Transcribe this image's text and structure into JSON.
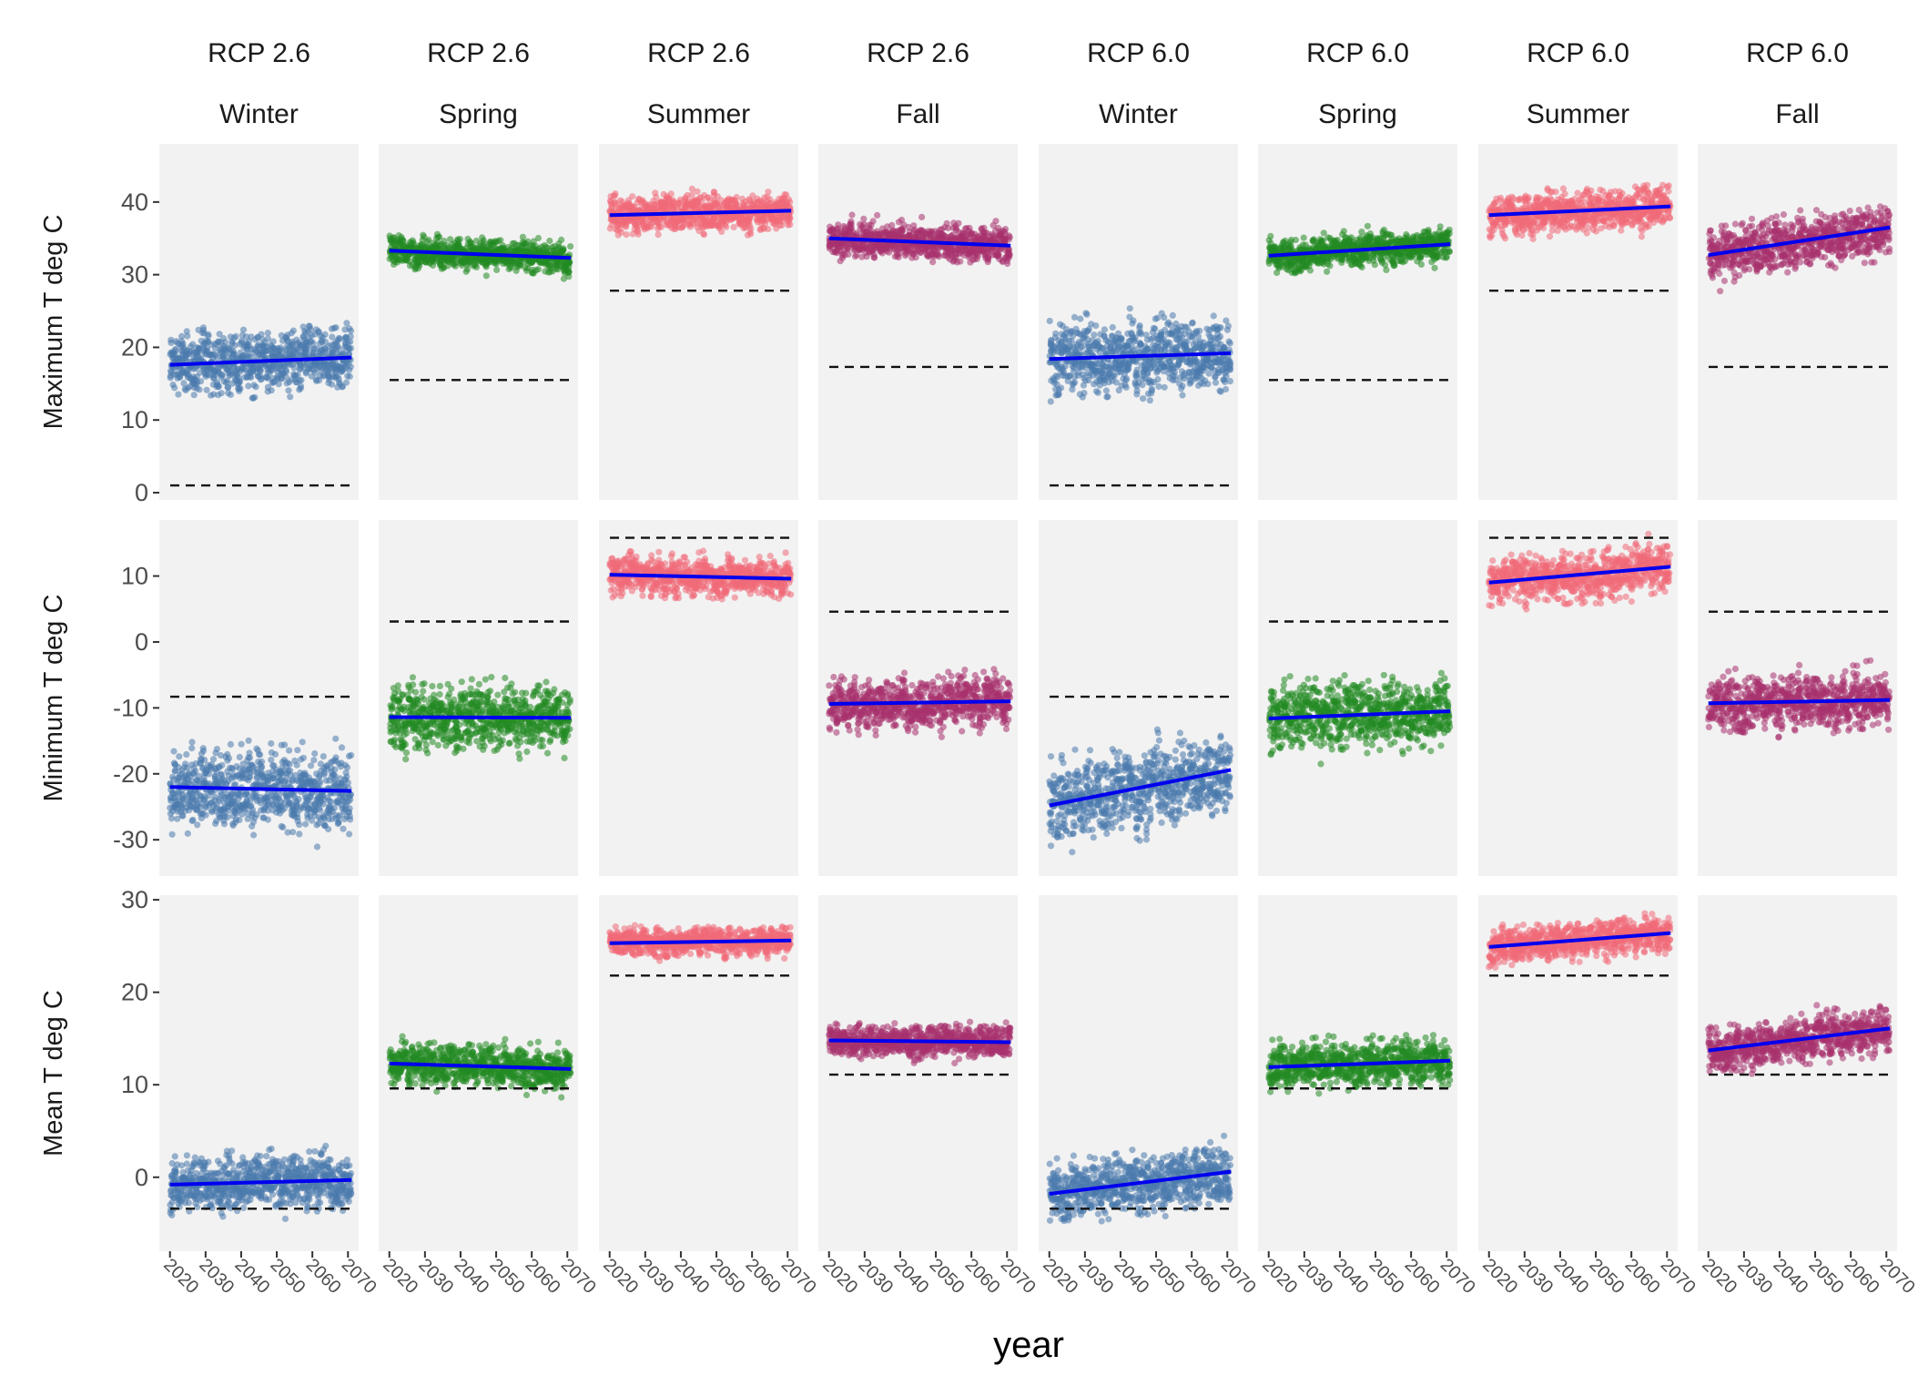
{
  "chart_data": {
    "type": "scatter",
    "xlabel": "year",
    "x_ticks": [
      2020,
      2030,
      2040,
      2050,
      2060,
      2070
    ],
    "x_range": [
      2017,
      2073
    ],
    "point_alpha": 0.55,
    "trend_color": "#0000ee",
    "reference_line_style": "dashed",
    "panel_background": "#f2f2f2",
    "season_colors": {
      "Winter": "#4a7aad",
      "Spring": "#228b22",
      "Summer": "#f06a78",
      "Fall": "#a8326e"
    },
    "columns": [
      {
        "scenario": "RCP 2.6",
        "season": "Winter"
      },
      {
        "scenario": "RCP 2.6",
        "season": "Spring"
      },
      {
        "scenario": "RCP 2.6",
        "season": "Summer"
      },
      {
        "scenario": "RCP 2.6",
        "season": "Fall"
      },
      {
        "scenario": "RCP 6.0",
        "season": "Winter"
      },
      {
        "scenario": "RCP 6.0",
        "season": "Spring"
      },
      {
        "scenario": "RCP 6.0",
        "season": "Summer"
      },
      {
        "scenario": "RCP 6.0",
        "season": "Fall"
      }
    ],
    "rows": [
      {
        "ylabel": "Maximum T deg C",
        "ylim": [
          -1,
          48
        ],
        "y_ticks": [
          0,
          10,
          20,
          30,
          40
        ],
        "panels": [
          {
            "trend_start": 17.6,
            "trend_end": 18.6,
            "reference": 1.0,
            "band_low": 13,
            "band_high": 24
          },
          {
            "trend_start": 33.3,
            "trend_end": 32.3,
            "reference": 15.5,
            "band_low": 30,
            "band_high": 35.5
          },
          {
            "trend_start": 38.2,
            "trend_end": 38.8,
            "reference": 27.8,
            "band_low": 35.5,
            "band_high": 42
          },
          {
            "trend_start": 35.0,
            "trend_end": 34.0,
            "reference": 17.3,
            "band_low": 31.5,
            "band_high": 38
          },
          {
            "trend_start": 18.4,
            "trend_end": 19.2,
            "reference": 1.0,
            "band_low": 12,
            "band_high": 25
          },
          {
            "trend_start": 32.6,
            "trend_end": 34.2,
            "reference": 15.5,
            "band_low": 30,
            "band_high": 36
          },
          {
            "trend_start": 38.2,
            "trend_end": 39.4,
            "reference": 27.8,
            "band_low": 35.5,
            "band_high": 43
          },
          {
            "trend_start": 32.7,
            "trend_end": 36.5,
            "reference": 17.3,
            "band_low": 29.5,
            "band_high": 39
          }
        ]
      },
      {
        "ylabel": "Minimum T deg C",
        "ylim": [
          -35.5,
          18.5
        ],
        "y_ticks": [
          -30,
          -20,
          -10,
          0,
          10
        ],
        "panels": [
          {
            "trend_start": -22.0,
            "trend_end": -22.6,
            "reference": -8.3,
            "band_low": -30,
            "band_high": -14
          },
          {
            "trend_start": -11.4,
            "trend_end": -11.5,
            "reference": 3.1,
            "band_low": -18,
            "band_high": -5
          },
          {
            "trend_start": 10.2,
            "trend_end": 9.6,
            "reference": 15.8,
            "band_low": 6,
            "band_high": 13.5
          },
          {
            "trend_start": -9.4,
            "trend_end": -9.0,
            "reference": 4.6,
            "band_low": -14,
            "band_high": -4
          },
          {
            "trend_start": -24.8,
            "trend_end": -19.4,
            "reference": -8.3,
            "band_low": -31,
            "band_high": -15
          },
          {
            "trend_start": -11.6,
            "trend_end": -10.5,
            "reference": 3.1,
            "band_low": -18,
            "band_high": -5
          },
          {
            "trend_start": 9.0,
            "trend_end": 11.4,
            "reference": 15.8,
            "band_low": 5,
            "band_high": 14.5
          },
          {
            "trend_start": -9.3,
            "trend_end": -8.8,
            "reference": 4.6,
            "band_low": -15,
            "band_high": -4
          }
        ]
      },
      {
        "ylabel": "Mean T deg C",
        "ylim": [
          -8,
          30.5
        ],
        "y_ticks": [
          0,
          10,
          20,
          30
        ],
        "panels": [
          {
            "trend_start": -0.8,
            "trend_end": -0.3,
            "reference": -3.4,
            "band_low": -4,
            "band_high": 3.5
          },
          {
            "trend_start": 12.3,
            "trend_end": 11.7,
            "reference": 9.6,
            "band_low": 9,
            "band_high": 15
          },
          {
            "trend_start": 25.3,
            "trend_end": 25.6,
            "reference": 21.8,
            "band_low": 23.5,
            "band_high": 27.5
          },
          {
            "trend_start": 14.8,
            "trend_end": 14.6,
            "reference": 11.1,
            "band_low": 12.5,
            "band_high": 17
          },
          {
            "trend_start": -1.8,
            "trend_end": 0.6,
            "reference": -3.4,
            "band_low": -5,
            "band_high": 3.5
          },
          {
            "trend_start": 11.9,
            "trend_end": 12.6,
            "reference": 9.6,
            "band_low": 9,
            "band_high": 15.5
          },
          {
            "trend_start": 24.9,
            "trend_end": 26.4,
            "reference": 21.8,
            "band_low": 23,
            "band_high": 28
          },
          {
            "trend_start": 13.7,
            "trend_end": 16.1,
            "reference": 11.1,
            "band_low": 11.5,
            "band_high": 18
          }
        ]
      }
    ]
  }
}
